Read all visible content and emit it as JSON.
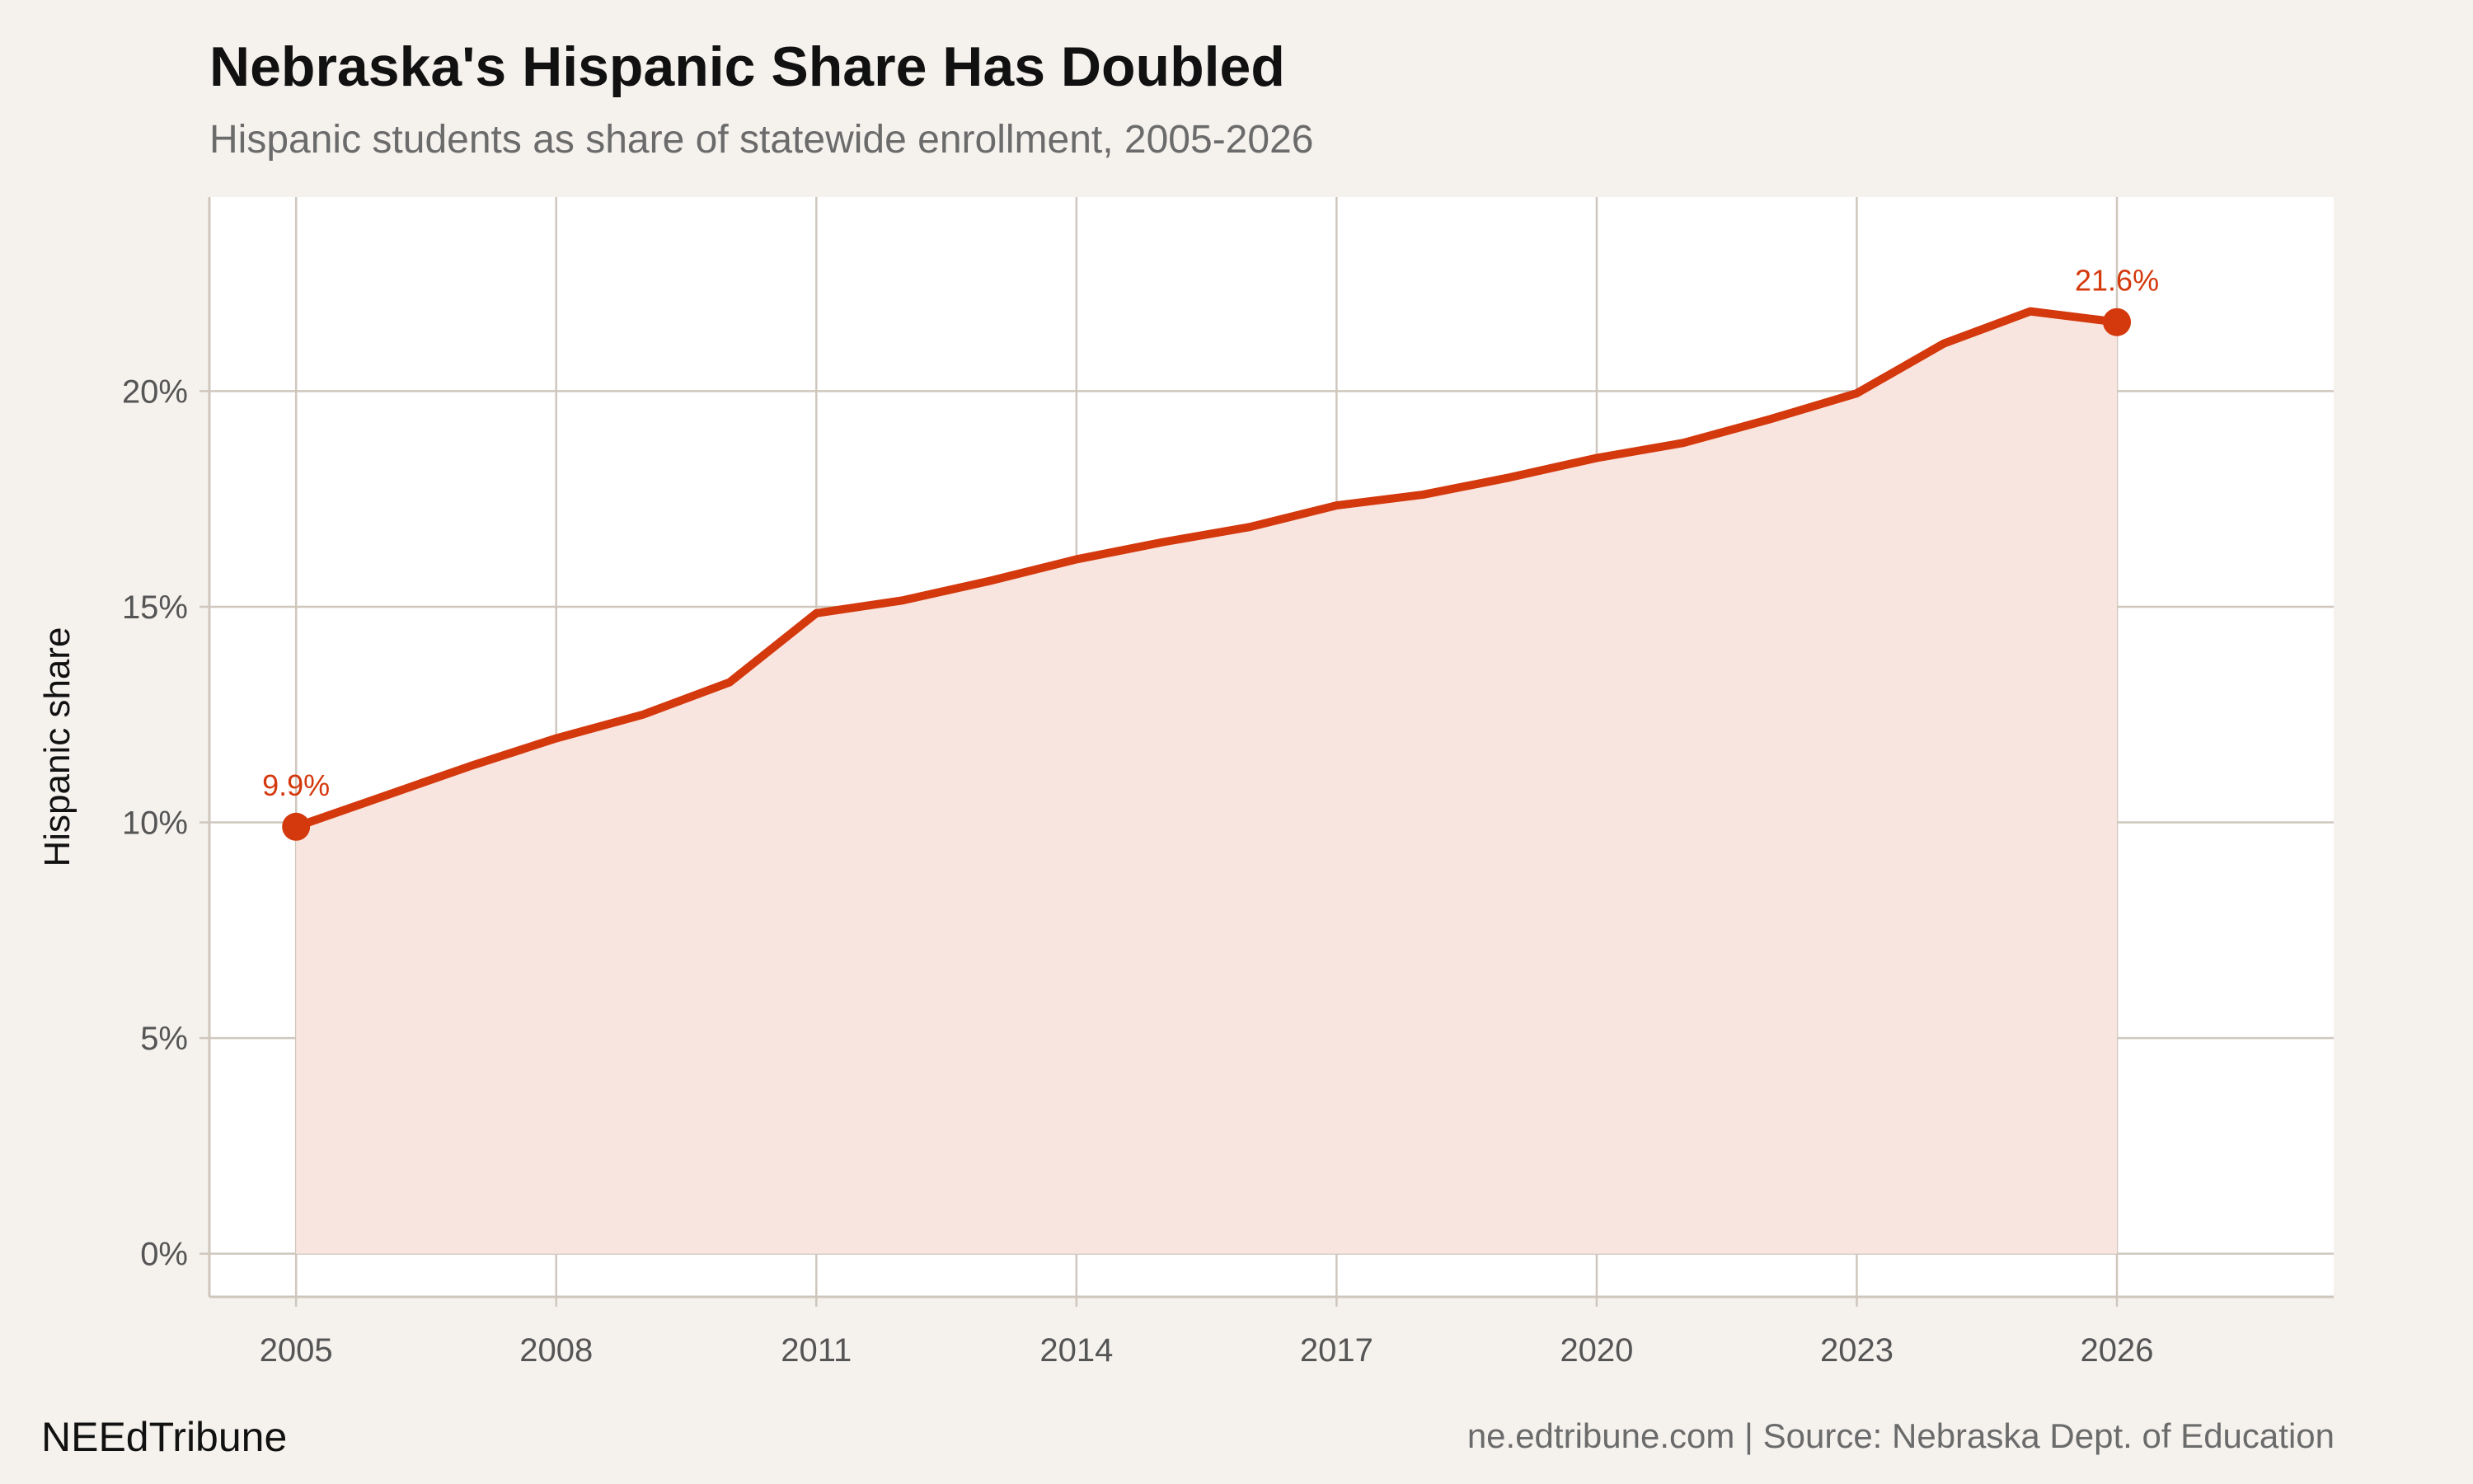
{
  "chart_data": {
    "type": "area",
    "title": "Nebraska's Hispanic Share Has Doubled",
    "subtitle": "Hispanic students as share of statewide enrollment, 2005-2026",
    "xlabel": "",
    "ylabel": "Hispanic share",
    "x": [
      2005,
      2006,
      2007,
      2008,
      2009,
      2010,
      2011,
      2012,
      2013,
      2014,
      2015,
      2016,
      2017,
      2018,
      2019,
      2020,
      2021,
      2022,
      2023,
      2024,
      2025,
      2026
    ],
    "values": [
      9.9,
      10.6,
      11.3,
      11.95,
      12.5,
      13.25,
      14.85,
      15.15,
      15.6,
      16.1,
      16.5,
      16.85,
      17.35,
      17.6,
      18.0,
      18.45,
      18.8,
      19.35,
      19.95,
      21.1,
      21.85,
      21.6
    ],
    "xlim": [
      2004,
      2028.5
    ],
    "ylim": [
      -1,
      24.5
    ],
    "x_ticks": [
      "2005",
      "2008",
      "2011",
      "2014",
      "2017",
      "2020",
      "2023",
      "2026"
    ],
    "y_ticks": [
      "0%",
      "5%",
      "10%",
      "15%",
      "20%"
    ],
    "annotations": [
      {
        "x": 2005,
        "label": "9.9%"
      },
      {
        "x": 2026,
        "label": "21.6%"
      }
    ],
    "grid": true,
    "colors": {
      "line": "#d4380d",
      "fill": "#f9e5df",
      "grid": "#cfc7bd",
      "panel": "#ffffff",
      "background": "#f5f2ee"
    }
  },
  "footer": {
    "brand": "NEEdTribune",
    "source": "ne.edtribune.com | Source: Nebraska Dept. of Education"
  }
}
